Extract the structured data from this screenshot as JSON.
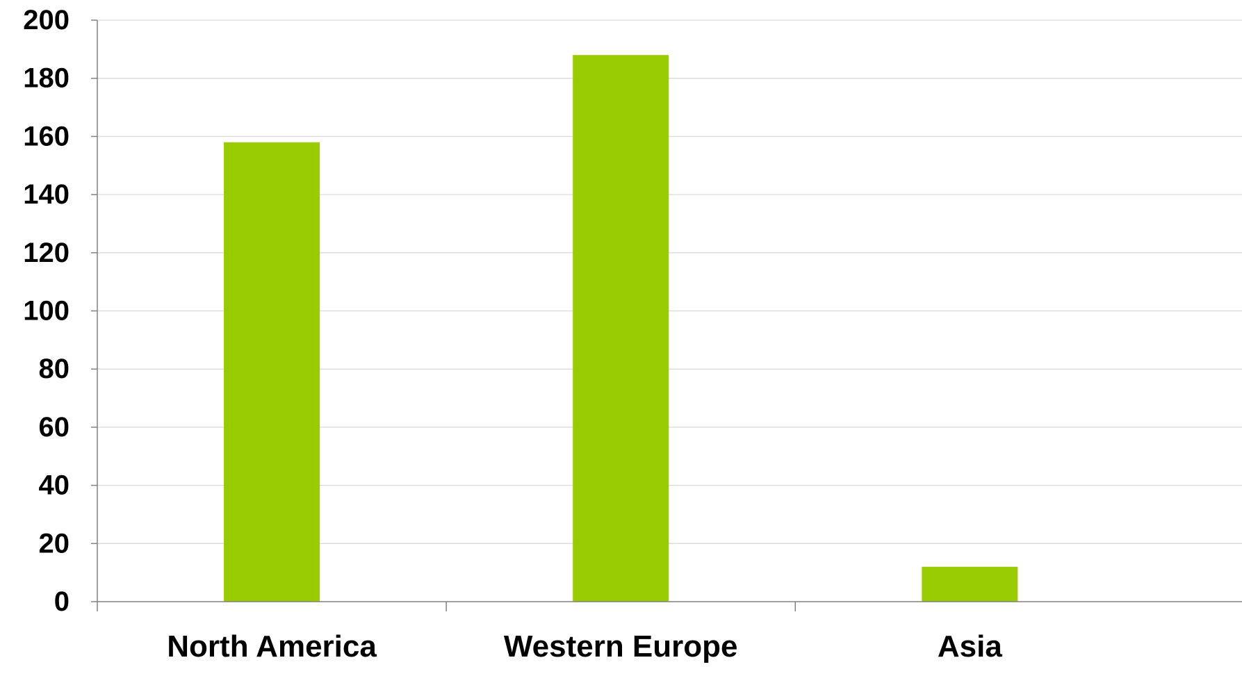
{
  "chart_data": {
    "type": "bar",
    "categories": [
      "North America",
      "Western Europe",
      "Asia"
    ],
    "series": [
      {
        "values": [
          158,
          188,
          12
        ]
      }
    ],
    "ylim": [
      0,
      200
    ],
    "yticks": [
      0,
      20,
      40,
      60,
      80,
      100,
      120,
      140,
      160,
      180,
      200
    ],
    "grid": true,
    "legend": "none",
    "colors": {
      "bar": "#99CC00",
      "grid": "#D9D9D9",
      "axis": "#808080"
    }
  }
}
